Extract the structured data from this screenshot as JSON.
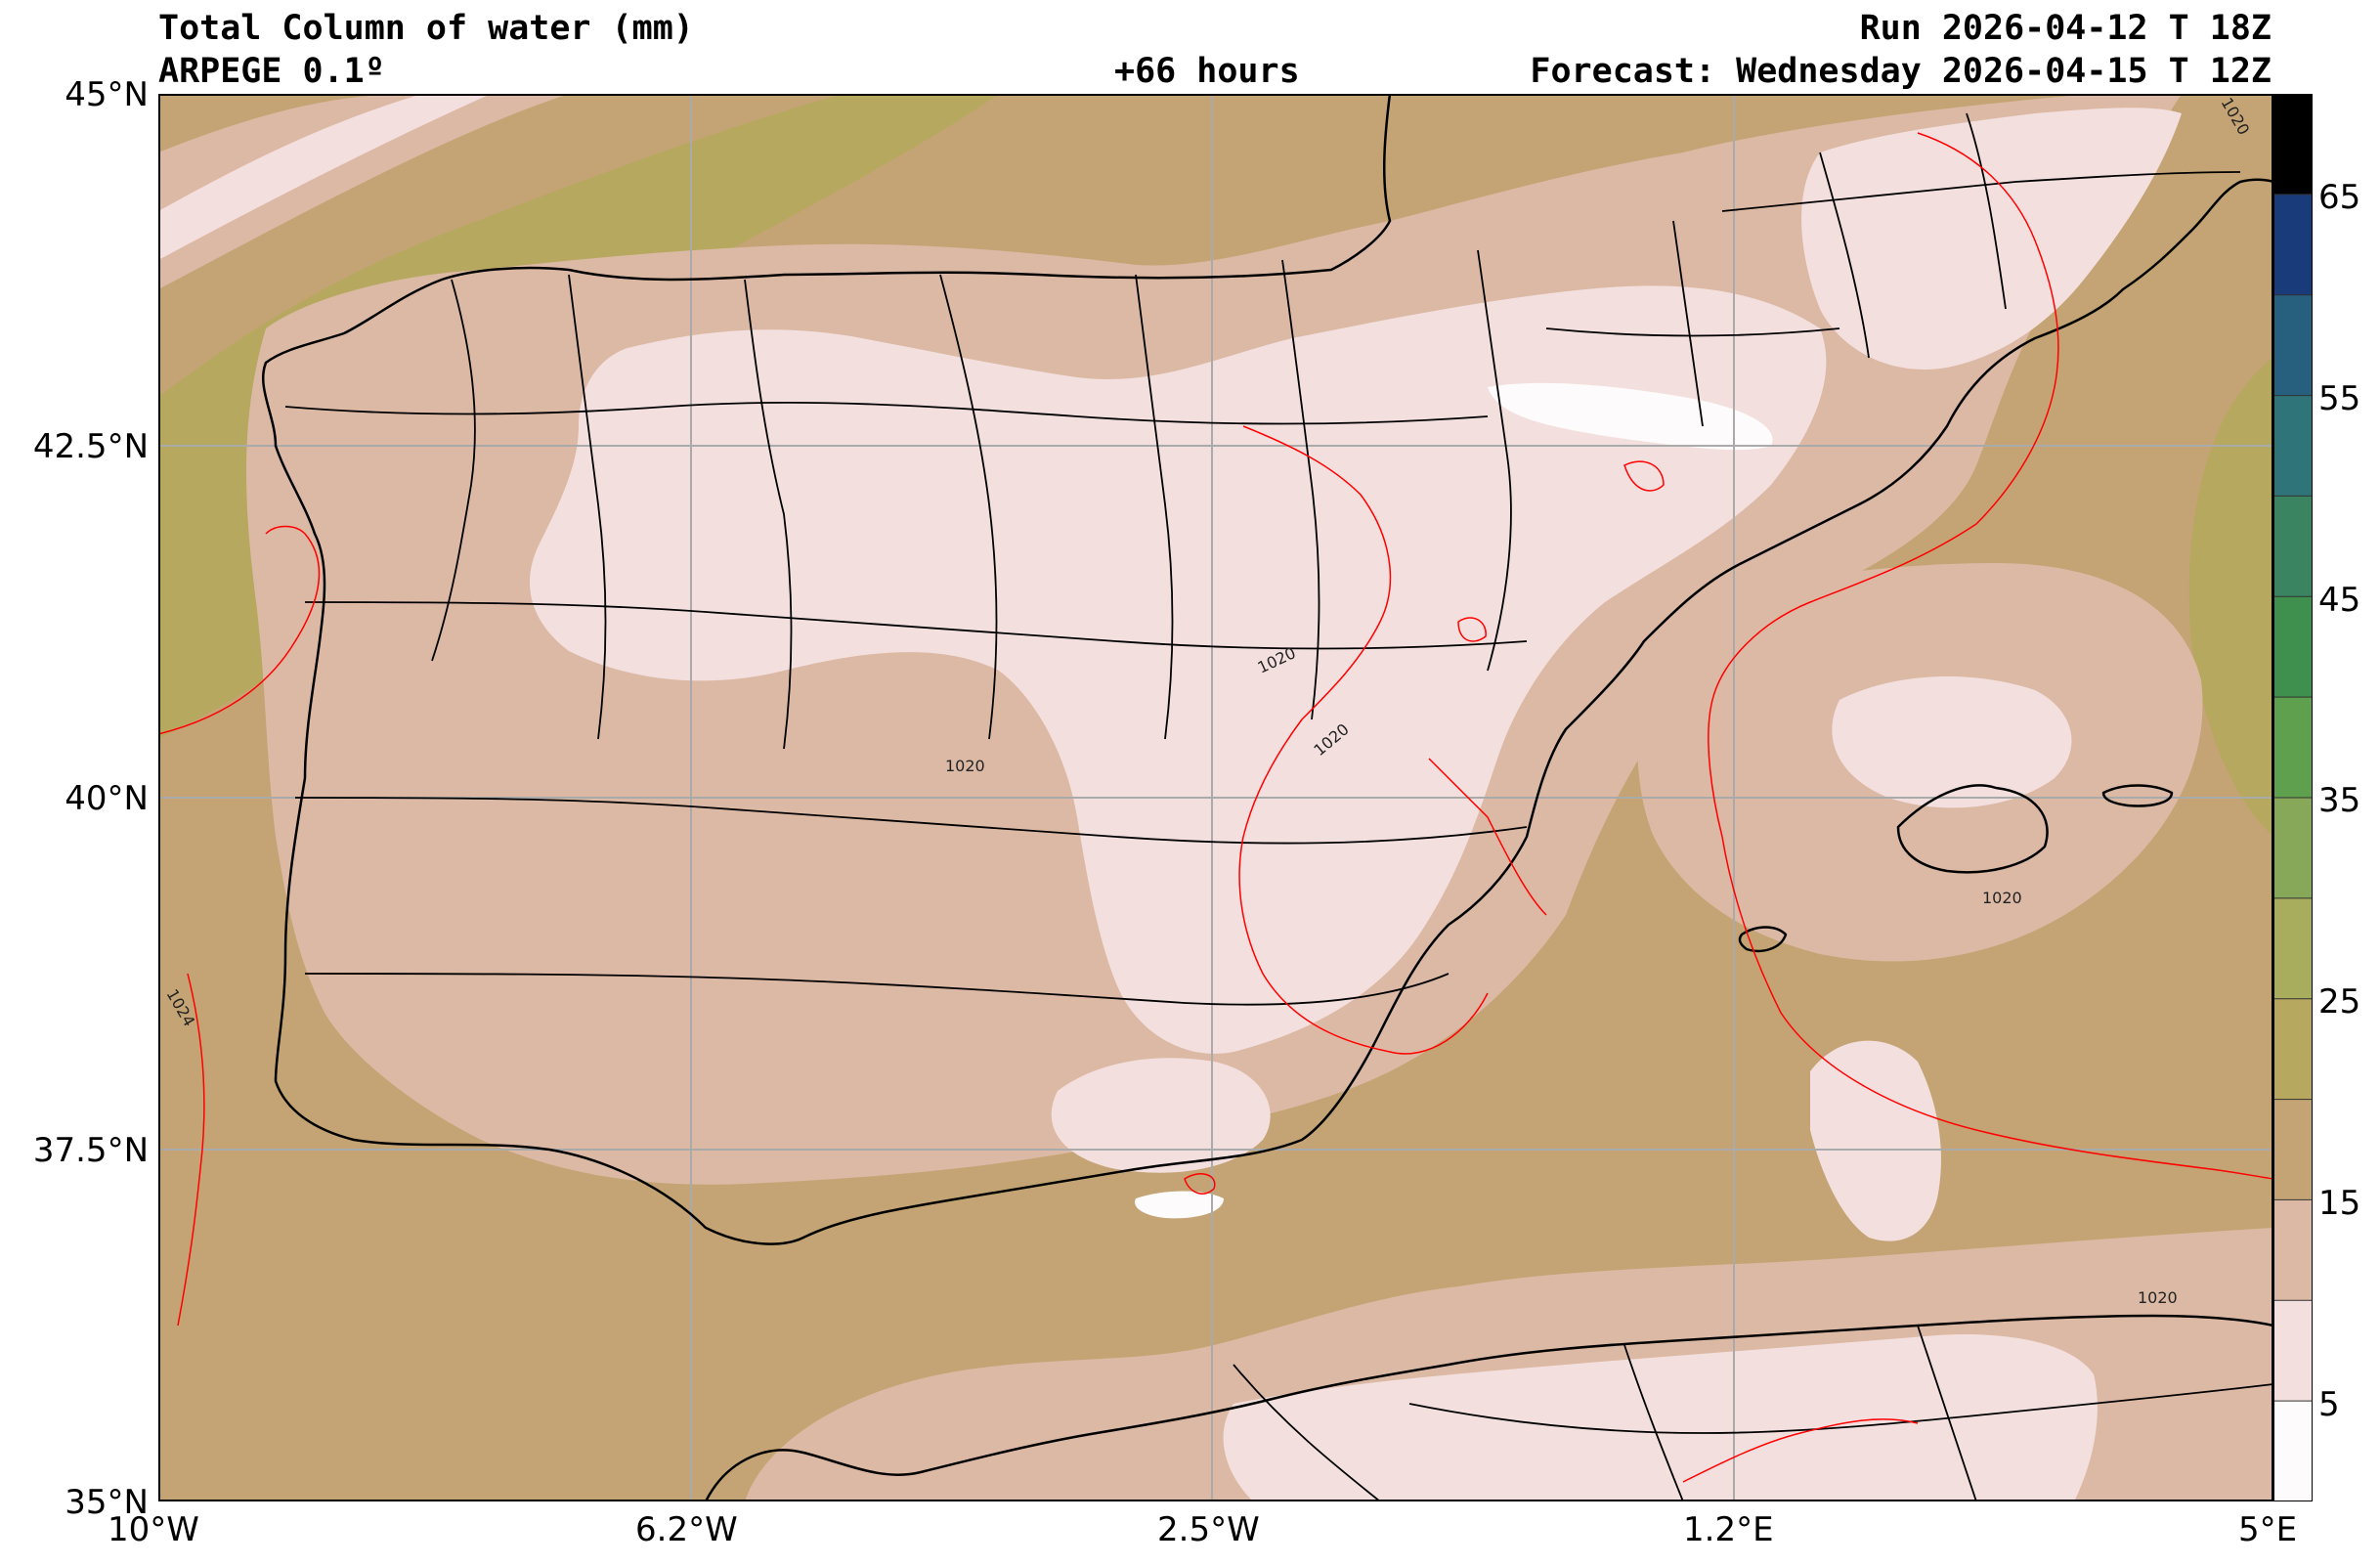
{
  "header": {
    "title": "Total Column of water (mm)",
    "model": "ARPEGE 0.1º",
    "run": "Run 2026-04-12 T 18Z",
    "lead": "+66 hours",
    "forecast": "Forecast: Wednesday 2026-04-15 T 12Z"
  },
  "map": {
    "lat_ticks": [
      "45°N",
      "42.5°N",
      "40°N",
      "37.5°N",
      "35°N"
    ],
    "lon_ticks": [
      "10°W",
      "6.2°W",
      "2.5°W",
      "1.2°E",
      "5°E"
    ],
    "isobar_labels": [
      "1020",
      "1020",
      "1020",
      "1020",
      "1020",
      "1024",
      "1020"
    ]
  },
  "colorbar": {
    "ticks": [
      "5",
      "15",
      "25",
      "35",
      "45",
      "55",
      "65"
    ],
    "bins": [
      {
        "min": 0,
        "max": 5,
        "color": "#fdfbfb"
      },
      {
        "min": 5,
        "max": 10,
        "color": "#f3e0de"
      },
      {
        "min": 10,
        "max": 15,
        "color": "#dcb9a5"
      },
      {
        "min": 15,
        "max": 20,
        "color": "#c4a474"
      },
      {
        "min": 20,
        "max": 25,
        "color": "#b6a85e"
      },
      {
        "min": 25,
        "max": 30,
        "color": "#a7ad5d"
      },
      {
        "min": 30,
        "max": 35,
        "color": "#87a759"
      },
      {
        "min": 35,
        "max": 40,
        "color": "#5fa04f"
      },
      {
        "min": 40,
        "max": 45,
        "color": "#3f8f4e"
      },
      {
        "min": 45,
        "max": 50,
        "color": "#3a8462"
      },
      {
        "min": 50,
        "max": 55,
        "color": "#2f7478"
      },
      {
        "min": 55,
        "max": 60,
        "color": "#26607e"
      },
      {
        "min": 60,
        "max": 65,
        "color": "#1a3b7a"
      },
      {
        "min": 65,
        "max": 70,
        "color": "#000000"
      }
    ]
  },
  "colors": {
    "land_border": "#000000",
    "isobar": "#ff0000",
    "grid": "#aaaaaa"
  }
}
